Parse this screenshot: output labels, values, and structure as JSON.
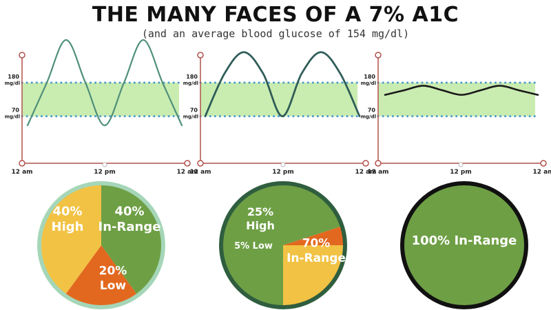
{
  "header": {
    "title": "THE MANY FACES OF A 7% A1C",
    "subtitle": "(and an average blood glucose of 154 mg/dl)"
  },
  "colors": {
    "band": "#c9ecb0",
    "band_dots": "#4a9bc7",
    "axis": "#b0504a",
    "curve_1": "#4f8f7a",
    "curve_2": "#2f5d58",
    "curve_3": "#1a1a1a",
    "in_range": "#6e9f45",
    "high": "#f2c244",
    "low": "#e2681f"
  },
  "chart_data": [
    {
      "type": "line",
      "x_ticks": [
        "12 am",
        "12 pm",
        "12 am"
      ],
      "y_ticks": [
        {
          "value": 180,
          "label": "180",
          "unit": "mg/dl"
        },
        {
          "value": 70,
          "label": "70",
          "unit": "mg/dl"
        }
      ],
      "target_range": [
        70,
        180
      ],
      "series": [
        {
          "x": [
            0,
            3,
            6,
            9,
            12,
            15,
            18,
            21,
            24
          ],
          "y": [
            40,
            180,
            320,
            180,
            40,
            180,
            320,
            180,
            40
          ]
        }
      ]
    },
    {
      "type": "line",
      "x_ticks": [
        "12 am",
        "12 pm",
        "12 am"
      ],
      "y_ticks": [
        {
          "value": 180,
          "label": "180",
          "unit": "mg/dl"
        },
        {
          "value": 70,
          "label": "70",
          "unit": "mg/dl"
        }
      ],
      "target_range": [
        70,
        180
      ],
      "series": [
        {
          "x": [
            0,
            3,
            6,
            9,
            12,
            15,
            18,
            21,
            24
          ],
          "y": [
            70,
            210,
            280,
            210,
            70,
            210,
            280,
            210,
            70
          ]
        }
      ]
    },
    {
      "type": "line",
      "x_ticks": [
        "12 am",
        "12 pm",
        "12 am"
      ],
      "y_ticks": [
        {
          "value": 180,
          "label": "180",
          "unit": "mg/dl"
        },
        {
          "value": 70,
          "label": "70",
          "unit": "mg/dl"
        }
      ],
      "target_range": [
        70,
        180
      ],
      "series": [
        {
          "x": [
            0,
            3,
            6,
            9,
            12,
            15,
            18,
            21,
            24
          ],
          "y": [
            140,
            155,
            170,
            155,
            140,
            155,
            170,
            155,
            140
          ]
        }
      ]
    },
    {
      "type": "pie",
      "slices": [
        {
          "value": 40,
          "pct": "40%",
          "label": "In-Range",
          "color": "#6e9f45"
        },
        {
          "value": 20,
          "pct": "20%",
          "label": "Low",
          "color": "#e2681f"
        },
        {
          "value": 40,
          "pct": "40%",
          "label": "High",
          "color": "#f2c244"
        }
      ]
    },
    {
      "type": "pie",
      "slices": [
        {
          "value": 70,
          "pct": "70%",
          "label": "In-Range",
          "color": "#6e9f45"
        },
        {
          "value": 5,
          "pct": "5%",
          "label": "Low",
          "color": "#e2681f"
        },
        {
          "value": 25,
          "pct": "25%",
          "label": "High",
          "color": "#f2c244"
        }
      ]
    },
    {
      "type": "pie",
      "slices": [
        {
          "value": 100,
          "pct": "100%",
          "label": "In-Range",
          "color": "#6e9f45"
        }
      ]
    }
  ]
}
